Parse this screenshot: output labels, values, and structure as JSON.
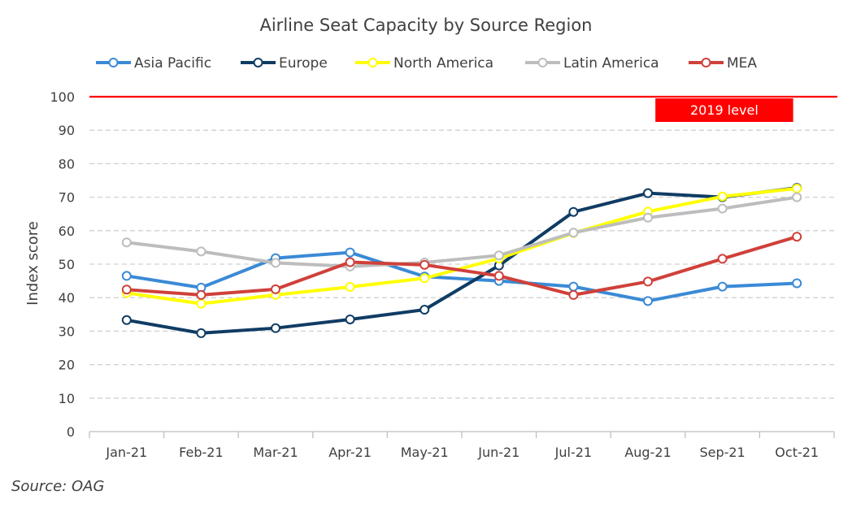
{
  "chart_data": {
    "type": "line",
    "title": "Airline Seat Capacity by Source Region",
    "ylabel": "Index score",
    "xlabel": "",
    "ylim": [
      0,
      100
    ],
    "yticks": [
      0,
      10,
      20,
      30,
      40,
      50,
      60,
      70,
      80,
      90,
      100
    ],
    "categories": [
      "Jan-21",
      "Feb-21",
      "Mar-21",
      "Apr-21",
      "May-21",
      "Jun-21",
      "Jul-21",
      "Aug-21",
      "Sep-21",
      "Oct-21"
    ],
    "grid": "horizontal dashed",
    "legend_position": "top",
    "series": [
      {
        "name": "Asia Pacific",
        "color": "#3a8ad6",
        "values": [
          46.5,
          43,
          51.8,
          53.5,
          46.3,
          45,
          43.3,
          39,
          43.3,
          44.3
        ]
      },
      {
        "name": "Europe",
        "color": "#0f3c63",
        "values": [
          33.3,
          29.4,
          30.9,
          33.5,
          36.4,
          49.6,
          65.6,
          71.2,
          70,
          72.8
        ]
      },
      {
        "name": "North America",
        "color": "#ffff00",
        "values": [
          41.4,
          38.2,
          40.8,
          43.2,
          45.8,
          51.7,
          59.3,
          65.7,
          70.2,
          72.6
        ]
      },
      {
        "name": "Latin America",
        "color": "#bdbdbd",
        "values": [
          56.5,
          53.8,
          50.4,
          49.3,
          50.5,
          52.6,
          59.4,
          63.9,
          66.6,
          70
        ]
      },
      {
        "name": "MEA",
        "color": "#d0403a",
        "values": [
          42.4,
          40.8,
          42.5,
          50.6,
          49.8,
          46.5,
          40.8,
          44.8,
          51.6,
          58.2
        ]
      }
    ],
    "reference_line": {
      "value": 100,
      "label": "2019 level",
      "color": "#ff0000"
    },
    "source": "Source: OAG"
  }
}
